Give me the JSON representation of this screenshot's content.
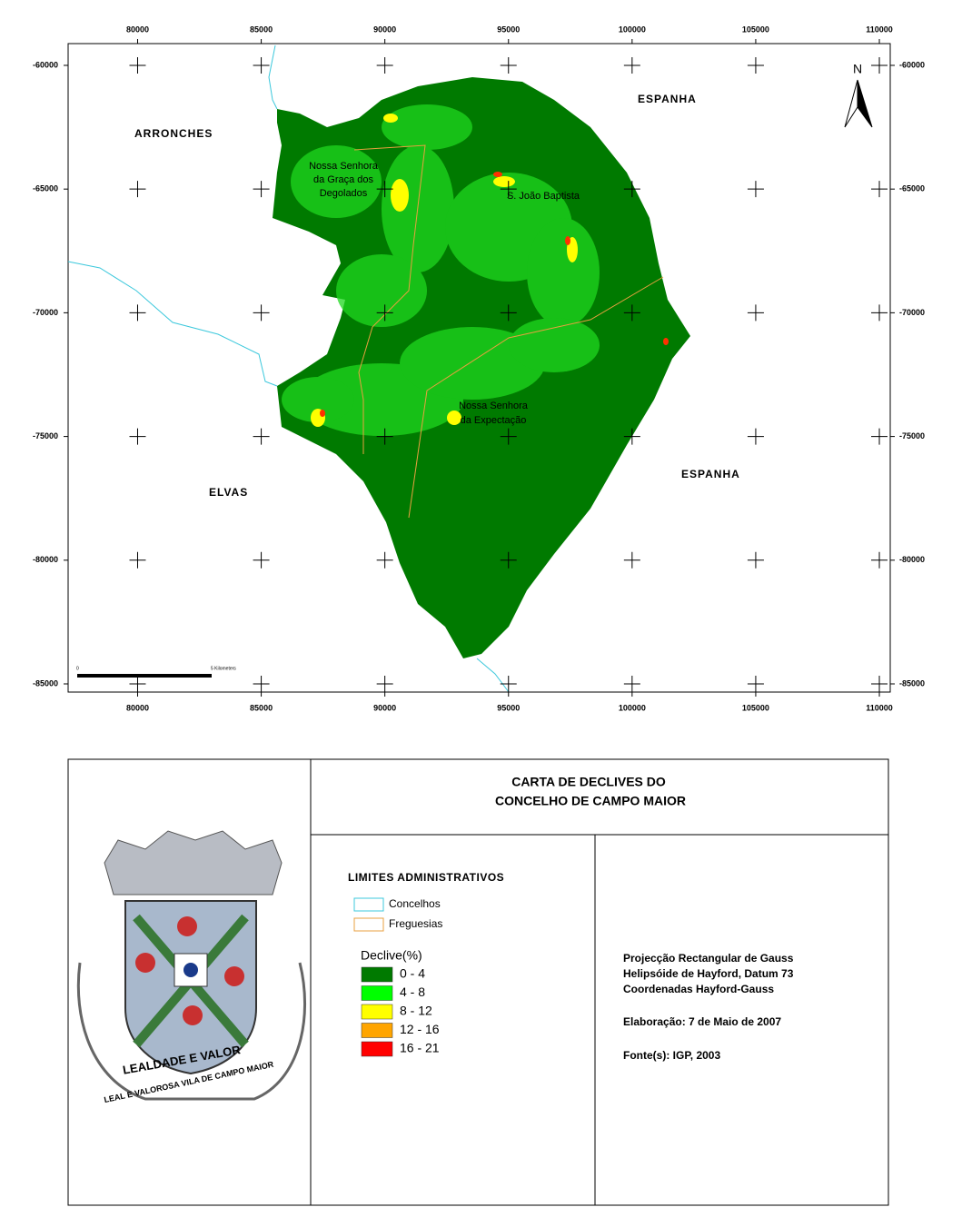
{
  "map": {
    "xticks": [
      80000,
      85000,
      90000,
      95000,
      100000,
      105000,
      110000
    ],
    "yticks": [
      -60000,
      -65000,
      -70000,
      -75000,
      -80000,
      -85000
    ],
    "xlim": [
      77190,
      110440
    ],
    "ylim": [
      -85330,
      -59120
    ],
    "north": "N",
    "places": {
      "arronches": "ARRONCHES",
      "espanha_north": "ESPANHA",
      "espanha_east": "ESPANHA",
      "elvas": "ELVAS"
    },
    "parishes": {
      "graca": [
        "Nossa Senhora",
        "da Graça dos",
        "Degolados"
      ],
      "baptista": "S. João Baptista",
      "expectacao": [
        "Nossa Senhora",
        "da Expectação"
      ]
    },
    "scale_bar": {
      "start": "0",
      "end": "5 Kilometers"
    }
  },
  "title": [
    "CARTA DE DECLIVES DO",
    "CONCELHO DE CAMPO MAIOR"
  ],
  "legend": {
    "heading": "LIMITES ADMINISTRATIVOS",
    "lines": [
      {
        "label": "Concelhos",
        "color": "#3cc8dc"
      },
      {
        "label": "Freguesias",
        "color": "#e8a040"
      }
    ],
    "ramp_title": "Declive(%)",
    "classes": [
      {
        "label": "0 - 4",
        "color": "#007a00"
      },
      {
        "label": "4 - 8",
        "color": "#00ff00"
      },
      {
        "label": "8 - 12",
        "color": "#ffff00"
      },
      {
        "label": "12 - 16",
        "color": "#ffa500"
      },
      {
        "label": "16 - 21",
        "color": "#ff0000"
      }
    ]
  },
  "info": {
    "projection": [
      "Projecção Rectangular de Gauss",
      "Helipsóide de Hayford, Datum 73",
      "Coordenadas Hayford-Gauss"
    ],
    "date": "Elaboração: 7 de Maio de 2007",
    "source": "Fonte(s): IGP, 2003"
  },
  "coat_of_arms": {
    "motto": "LEALDADE E VALOR",
    "ribbon": "LEAL E VALOROSA VILA DE CAMPO MAIOR"
  }
}
